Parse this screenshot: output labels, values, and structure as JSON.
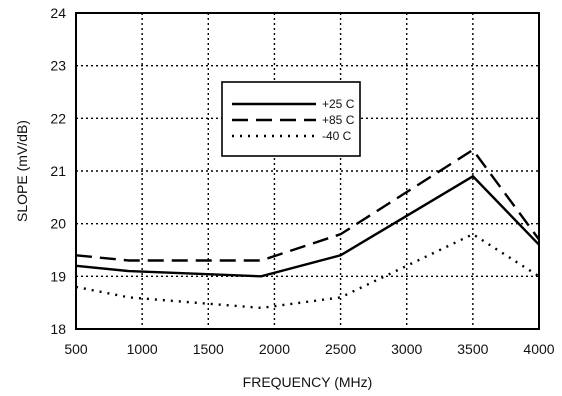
{
  "chart_data": {
    "type": "line",
    "title": "",
    "xlabel": "FREQUENCY (MHz)",
    "ylabel": "SLOPE (mV/dB)",
    "xlim": [
      500,
      4000
    ],
    "ylim": [
      18,
      24
    ],
    "xticks": [
      500,
      1000,
      1500,
      2000,
      2500,
      3000,
      3500,
      4000
    ],
    "yticks": [
      18,
      19,
      20,
      21,
      22,
      23,
      24
    ],
    "grid": true,
    "legend_position": "upper-center",
    "series": [
      {
        "name": "+25 C",
        "style": "solid",
        "x": [
          500,
          900,
          1900,
          2500,
          3500,
          4000
        ],
        "y": [
          19.2,
          19.1,
          19.0,
          19.4,
          20.9,
          19.6
        ]
      },
      {
        "name": "+85 C",
        "style": "dashed",
        "x": [
          500,
          900,
          1900,
          2500,
          3500,
          4000
        ],
        "y": [
          19.4,
          19.3,
          19.3,
          19.8,
          21.4,
          19.7
        ]
      },
      {
        "name": "-40 C",
        "style": "dotted",
        "x": [
          500,
          900,
          1900,
          2500,
          3500,
          4000
        ],
        "y": [
          18.8,
          18.6,
          18.4,
          18.6,
          19.8,
          19.0
        ]
      }
    ]
  }
}
